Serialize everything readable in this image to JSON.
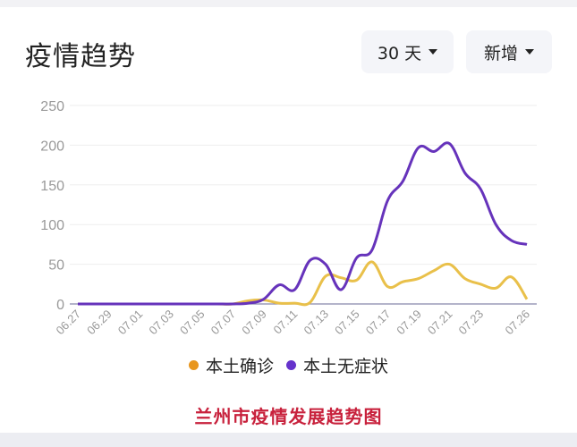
{
  "header": {
    "title": "疫情趋势",
    "range_dropdown": {
      "label": "30 天"
    },
    "type_dropdown": {
      "label": "新增"
    }
  },
  "legend": [
    {
      "label": "本土确诊",
      "color": "#e8961e"
    },
    {
      "label": "本土无症状",
      "color": "#6633cc"
    }
  ],
  "caption": "兰州市疫情发展趋势图",
  "colors": {
    "confirmed_line": "#e9c04a",
    "asymptomatic_line": "#6633bb",
    "grid": "#eeeeee",
    "axis": "#8888aa",
    "tick_text": "#999999",
    "caption": "#c8213c"
  },
  "chart_data": {
    "type": "line",
    "title": "疫情趋势",
    "xlabel": "",
    "ylabel": "",
    "ylim": [
      0,
      250
    ],
    "yticks": [
      0,
      50,
      100,
      150,
      200,
      250
    ],
    "grid": true,
    "legend_position": "bottom",
    "x": [
      "06.27",
      "06.28",
      "06.29",
      "06.30",
      "07.01",
      "07.02",
      "07.03",
      "07.04",
      "07.05",
      "07.06",
      "07.07",
      "07.08",
      "07.09",
      "07.10",
      "07.11",
      "07.12",
      "07.13",
      "07.14",
      "07.15",
      "07.16",
      "07.17",
      "07.18",
      "07.19",
      "07.20",
      "07.21",
      "07.22",
      "07.23",
      "07.24",
      "07.25",
      "07.26"
    ],
    "xtick_labels": [
      "06.27",
      "06.29",
      "07.01",
      "07.03",
      "07.05",
      "07.07",
      "07.09",
      "07.11",
      "07.13",
      "07.15",
      "07.17",
      "07.19",
      "07.21",
      "07.23",
      "07.26"
    ],
    "series": [
      {
        "name": "本土确诊",
        "values": [
          0,
          0,
          0,
          0,
          0,
          0,
          0,
          0,
          0,
          0,
          0,
          4,
          5,
          1,
          1,
          2,
          35,
          33,
          30,
          53,
          22,
          28,
          32,
          42,
          50,
          32,
          25,
          20,
          34,
          6
        ]
      },
      {
        "name": "本土无症状",
        "values": [
          0,
          0,
          0,
          0,
          0,
          0,
          0,
          0,
          0,
          0,
          0,
          1,
          6,
          24,
          18,
          55,
          50,
          18,
          58,
          68,
          130,
          155,
          197,
          192,
          202,
          165,
          145,
          100,
          80,
          75
        ]
      }
    ]
  }
}
